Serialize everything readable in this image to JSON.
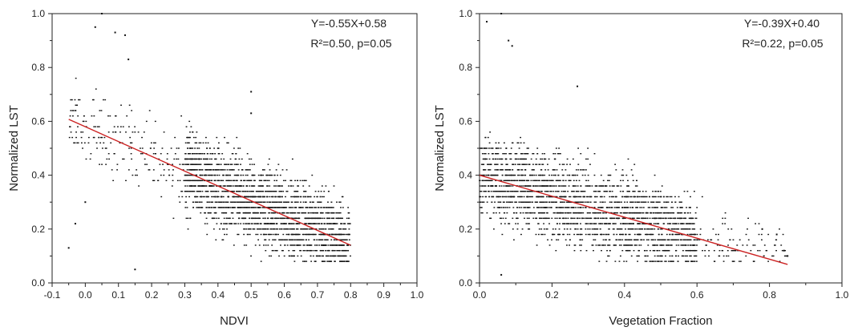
{
  "chart_data": [
    {
      "type": "scatter",
      "xlabel": "NDVI",
      "ylabel": "Normalized LST",
      "xlim": [
        -0.1,
        1.0
      ],
      "ylim": [
        0.0,
        1.0
      ],
      "x_ticks": [
        "-0.1",
        "0.0",
        "0.1",
        "0.2",
        "0.3",
        "0.4",
        "0.5",
        "0.6",
        "0.7",
        "0.8",
        "0.9",
        "1.0"
      ],
      "y_ticks": [
        "0.0",
        "0.2",
        "0.4",
        "0.6",
        "0.8",
        "1.0"
      ],
      "equation": "Y=-0.55X+0.58",
      "r_squared_text": "R²=0.50, p=0.05",
      "fit": {
        "slope": -0.55,
        "intercept": 0.58,
        "x_start": -0.05,
        "x_end": 0.8,
        "color": "#cc2222"
      },
      "point_color": "#111111",
      "point_distribution": {
        "x_range": [
          -0.05,
          0.8
        ],
        "dense_x_range": [
          0.3,
          0.8
        ],
        "y_range": [
          0.02,
          1.0
        ]
      },
      "outliers": [
        {
          "x": 0.05,
          "y": 1.0
        },
        {
          "x": 0.03,
          "y": 0.95
        },
        {
          "x": 0.09,
          "y": 0.93
        },
        {
          "x": 0.12,
          "y": 0.92
        },
        {
          "x": 0.13,
          "y": 0.83
        },
        {
          "x": 0.5,
          "y": 0.71
        },
        {
          "x": 0.5,
          "y": 0.63
        },
        {
          "x": -0.05,
          "y": 0.13
        },
        {
          "x": -0.03,
          "y": 0.22
        },
        {
          "x": 0.0,
          "y": 0.3
        },
        {
          "x": 0.15,
          "y": 0.05
        }
      ]
    },
    {
      "type": "scatter",
      "xlabel": "Vegetation Fraction",
      "ylabel": "Normalized LST",
      "xlim": [
        0.0,
        1.0
      ],
      "ylim": [
        0.0,
        1.0
      ],
      "x_ticks": [
        "0.0",
        "0.2",
        "0.4",
        "0.6",
        "0.8",
        "1.0"
      ],
      "y_ticks": [
        "0.0",
        "0.2",
        "0.4",
        "0.6",
        "0.8",
        "1.0"
      ],
      "equation": "Y=-0.39X+0.40",
      "r_squared_text": "R²=0.22, p=0.05",
      "fit": {
        "slope": -0.39,
        "intercept": 0.4,
        "x_start": 0.0,
        "x_end": 0.85,
        "color": "#cc2222"
      },
      "point_color": "#111111",
      "point_distribution": {
        "x_range": [
          0.0,
          0.85
        ],
        "dense_x_range": [
          0.0,
          0.6
        ],
        "y_range": [
          0.02,
          1.0
        ]
      },
      "outliers": [
        {
          "x": 0.06,
          "y": 1.0
        },
        {
          "x": 0.02,
          "y": 0.97
        },
        {
          "x": 0.08,
          "y": 0.9
        },
        {
          "x": 0.09,
          "y": 0.88
        },
        {
          "x": 0.27,
          "y": 0.73
        },
        {
          "x": 0.82,
          "y": 0.18
        },
        {
          "x": 0.84,
          "y": 0.12
        },
        {
          "x": 0.85,
          "y": 0.1
        },
        {
          "x": 0.78,
          "y": 0.2
        },
        {
          "x": 0.06,
          "y": 0.03
        }
      ]
    }
  ]
}
